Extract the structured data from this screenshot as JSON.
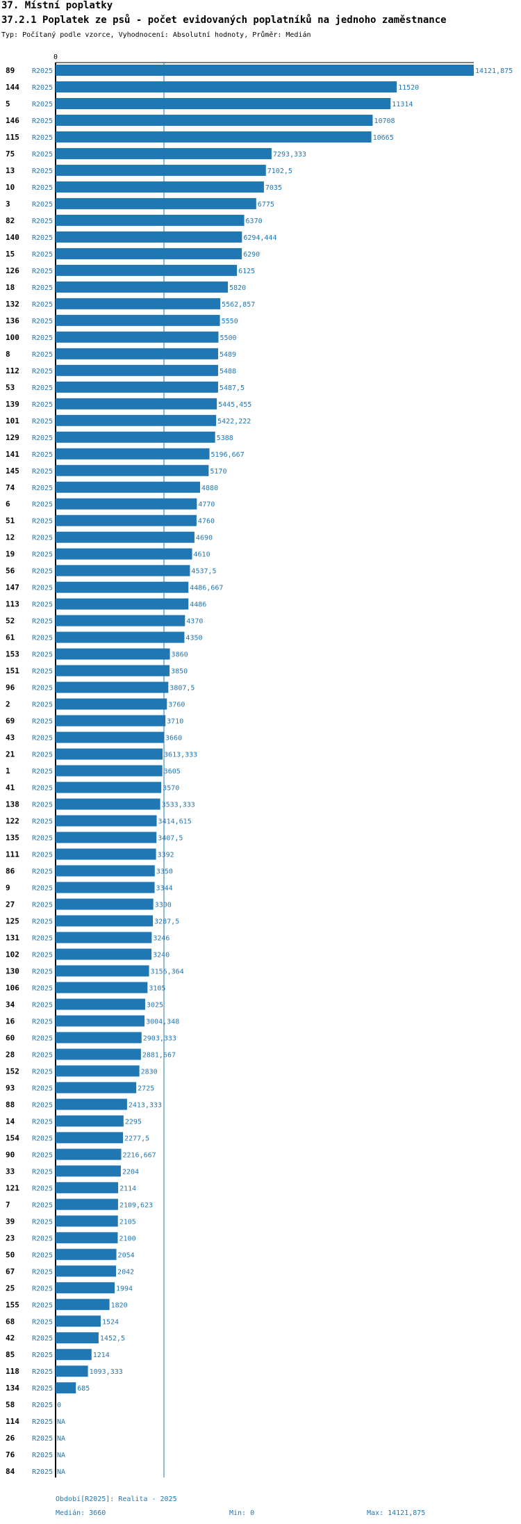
{
  "section_title": "37. Místní poplatky",
  "chart_title": "37.2.1 Poplatek ze psů - počet evidovaných poplatníků na jednoho zaměstnance",
  "subtitle": "Typ: Počítaný podle vzorce, Vyhodnocení: Absolutní hodnoty, Průměr: Medián",
  "colors": {
    "bar": "#1f77b4",
    "text_blue": "#1f77b4",
    "axis": "#000000"
  },
  "chart_data": {
    "type": "bar",
    "orientation": "horizontal",
    "period_label": "R2025",
    "axis_zero_label": "0",
    "xlim": [
      0,
      14121.875
    ],
    "median": 3660,
    "rows": [
      {
        "id": "89",
        "value": 14121.875,
        "label": "14121,875"
      },
      {
        "id": "144",
        "value": 11520,
        "label": "11520"
      },
      {
        "id": "5",
        "value": 11314,
        "label": "11314"
      },
      {
        "id": "146",
        "value": 10708,
        "label": "10708"
      },
      {
        "id": "115",
        "value": 10665,
        "label": "10665"
      },
      {
        "id": "75",
        "value": 7293.333,
        "label": "7293,333"
      },
      {
        "id": "13",
        "value": 7102.5,
        "label": "7102,5"
      },
      {
        "id": "10",
        "value": 7035,
        "label": "7035"
      },
      {
        "id": "3",
        "value": 6775,
        "label": "6775"
      },
      {
        "id": "82",
        "value": 6370,
        "label": "6370"
      },
      {
        "id": "140",
        "value": 6294.444,
        "label": "6294,444"
      },
      {
        "id": "15",
        "value": 6290,
        "label": "6290"
      },
      {
        "id": "126",
        "value": 6125,
        "label": "6125"
      },
      {
        "id": "18",
        "value": 5820,
        "label": "5820"
      },
      {
        "id": "132",
        "value": 5562.857,
        "label": "5562,857"
      },
      {
        "id": "136",
        "value": 5550,
        "label": "5550"
      },
      {
        "id": "100",
        "value": 5500,
        "label": "5500"
      },
      {
        "id": "8",
        "value": 5489,
        "label": "5489"
      },
      {
        "id": "112",
        "value": 5488,
        "label": "5488"
      },
      {
        "id": "53",
        "value": 5487.5,
        "label": "5487,5"
      },
      {
        "id": "139",
        "value": 5445.455,
        "label": "5445,455"
      },
      {
        "id": "101",
        "value": 5422.222,
        "label": "5422,222"
      },
      {
        "id": "129",
        "value": 5388,
        "label": "5388"
      },
      {
        "id": "141",
        "value": 5196.667,
        "label": "5196,667"
      },
      {
        "id": "145",
        "value": 5170,
        "label": "5170"
      },
      {
        "id": "74",
        "value": 4880,
        "label": "4880"
      },
      {
        "id": "6",
        "value": 4770,
        "label": "4770"
      },
      {
        "id": "51",
        "value": 4760,
        "label": "4760"
      },
      {
        "id": "12",
        "value": 4690,
        "label": "4690"
      },
      {
        "id": "19",
        "value": 4610,
        "label": "4610"
      },
      {
        "id": "56",
        "value": 4537.5,
        "label": "4537,5"
      },
      {
        "id": "147",
        "value": 4486.667,
        "label": "4486,667"
      },
      {
        "id": "113",
        "value": 4486,
        "label": "4486"
      },
      {
        "id": "52",
        "value": 4370,
        "label": "4370"
      },
      {
        "id": "61",
        "value": 4350,
        "label": "4350"
      },
      {
        "id": "153",
        "value": 3860,
        "label": "3860"
      },
      {
        "id": "151",
        "value": 3850,
        "label": "3850"
      },
      {
        "id": "96",
        "value": 3807.5,
        "label": "3807,5"
      },
      {
        "id": "2",
        "value": 3760,
        "label": "3760"
      },
      {
        "id": "69",
        "value": 3710,
        "label": "3710"
      },
      {
        "id": "43",
        "value": 3660,
        "label": "3660"
      },
      {
        "id": "21",
        "value": 3613.333,
        "label": "3613,333"
      },
      {
        "id": "1",
        "value": 3605,
        "label": "3605"
      },
      {
        "id": "41",
        "value": 3570,
        "label": "3570"
      },
      {
        "id": "138",
        "value": 3533.333,
        "label": "3533,333"
      },
      {
        "id": "122",
        "value": 3414.615,
        "label": "3414,615"
      },
      {
        "id": "135",
        "value": 3407.5,
        "label": "3407,5"
      },
      {
        "id": "111",
        "value": 3392,
        "label": "3392"
      },
      {
        "id": "86",
        "value": 3350,
        "label": "3350"
      },
      {
        "id": "9",
        "value": 3344,
        "label": "3344"
      },
      {
        "id": "27",
        "value": 3300,
        "label": "3300"
      },
      {
        "id": "125",
        "value": 3287.5,
        "label": "3287,5"
      },
      {
        "id": "131",
        "value": 3246,
        "label": "3246"
      },
      {
        "id": "102",
        "value": 3240,
        "label": "3240"
      },
      {
        "id": "130",
        "value": 3156.364,
        "label": "3156,364"
      },
      {
        "id": "106",
        "value": 3105,
        "label": "3105"
      },
      {
        "id": "34",
        "value": 3025,
        "label": "3025"
      },
      {
        "id": "16",
        "value": 3004.348,
        "label": "3004,348"
      },
      {
        "id": "60",
        "value": 2903.333,
        "label": "2903,333"
      },
      {
        "id": "28",
        "value": 2881.667,
        "label": "2881,667"
      },
      {
        "id": "152",
        "value": 2830,
        "label": "2830"
      },
      {
        "id": "93",
        "value": 2725,
        "label": "2725"
      },
      {
        "id": "88",
        "value": 2413.333,
        "label": "2413,333"
      },
      {
        "id": "14",
        "value": 2295,
        "label": "2295"
      },
      {
        "id": "154",
        "value": 2277.5,
        "label": "2277,5"
      },
      {
        "id": "90",
        "value": 2216.667,
        "label": "2216,667"
      },
      {
        "id": "33",
        "value": 2204,
        "label": "2204"
      },
      {
        "id": "121",
        "value": 2114,
        "label": "2114"
      },
      {
        "id": "7",
        "value": 2109.623,
        "label": "2109,623"
      },
      {
        "id": "39",
        "value": 2105,
        "label": "2105"
      },
      {
        "id": "23",
        "value": 2100,
        "label": "2100"
      },
      {
        "id": "50",
        "value": 2054,
        "label": "2054"
      },
      {
        "id": "67",
        "value": 2042,
        "label": "2042"
      },
      {
        "id": "25",
        "value": 1994,
        "label": "1994"
      },
      {
        "id": "155",
        "value": 1820,
        "label": "1820"
      },
      {
        "id": "68",
        "value": 1524,
        "label": "1524"
      },
      {
        "id": "42",
        "value": 1452.5,
        "label": "1452,5"
      },
      {
        "id": "85",
        "value": 1214,
        "label": "1214"
      },
      {
        "id": "118",
        "value": 1093.333,
        "label": "1093,333"
      },
      {
        "id": "134",
        "value": 685,
        "label": "685"
      },
      {
        "id": "58",
        "value": 0,
        "label": "0"
      },
      {
        "id": "114",
        "value": null,
        "label": "NA"
      },
      {
        "id": "26",
        "value": null,
        "label": "NA"
      },
      {
        "id": "76",
        "value": null,
        "label": "NA"
      },
      {
        "id": "84",
        "value": null,
        "label": "NA"
      }
    ]
  },
  "footer": {
    "period": "Období[R2025]: Realita - 2025",
    "median": "Medián: 3660",
    "min": "Min: 0",
    "max": "Max: 14121,875"
  }
}
